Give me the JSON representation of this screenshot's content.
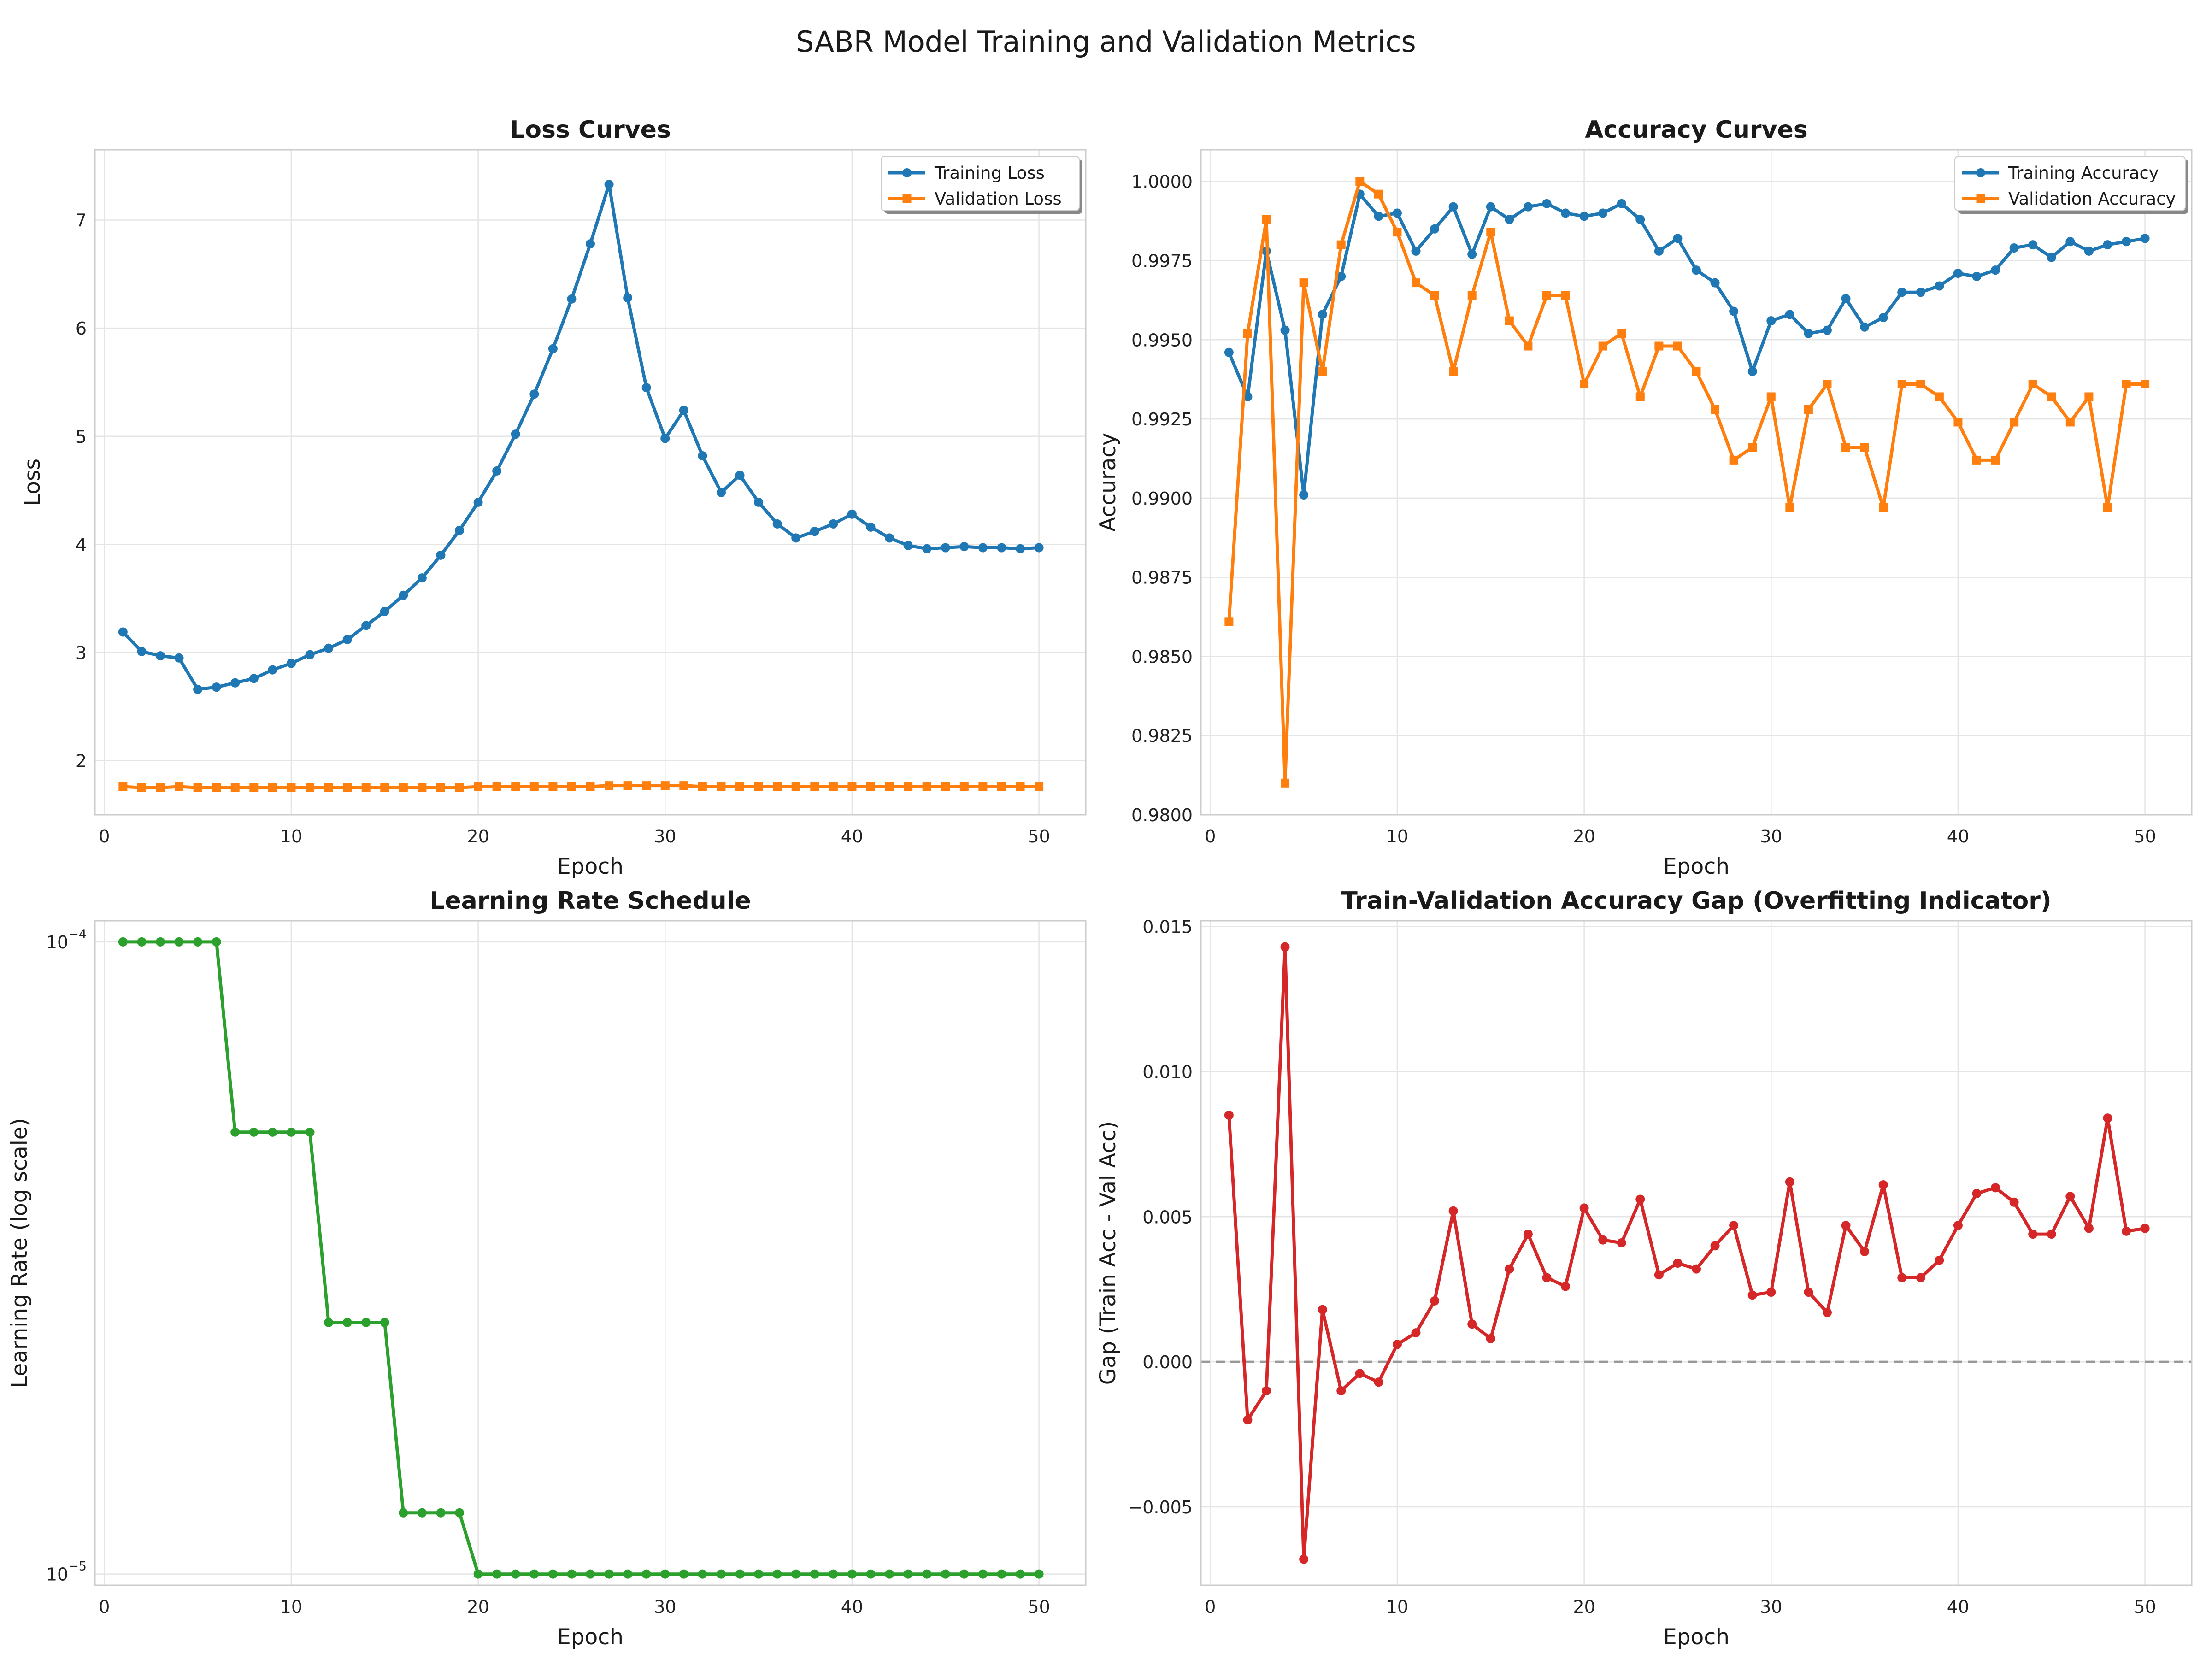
{
  "figure": {
    "title": "SABR Model Training and Validation Metrics"
  },
  "colors": {
    "blue": "#1f77b4",
    "orange": "#ff7f0e",
    "green": "#2ca02c",
    "red": "#d62728",
    "grid": "#e5e5e5",
    "frame": "#cccccc",
    "zero_line": "#999999"
  },
  "chart_data": [
    {
      "type": "line",
      "title": "Loss Curves",
      "xlabel": "Epoch",
      "ylabel": "Loss",
      "xlim": [
        -0.5,
        52.5
      ],
      "ylim": [
        1.5,
        7.65
      ],
      "xticks": [
        0,
        10,
        20,
        30,
        40,
        50
      ],
      "yticks": [
        2,
        3,
        4,
        5,
        6,
        7
      ],
      "ytick_labels": [
        "2",
        "3",
        "4",
        "5",
        "6",
        "7"
      ],
      "grid": true,
      "legend_position": "top-right",
      "x": [
        1,
        2,
        3,
        4,
        5,
        6,
        7,
        8,
        9,
        10,
        11,
        12,
        13,
        14,
        15,
        16,
        17,
        18,
        19,
        20,
        21,
        22,
        23,
        24,
        25,
        26,
        27,
        28,
        29,
        30,
        31,
        32,
        33,
        34,
        35,
        36,
        37,
        38,
        39,
        40,
        41,
        42,
        43,
        44,
        45,
        46,
        47,
        48,
        49,
        50
      ],
      "series": [
        {
          "name": "Training Loss",
          "color": "#1f77b4",
          "marker": "circle",
          "values": [
            3.19,
            3.01,
            2.97,
            2.95,
            2.66,
            2.68,
            2.72,
            2.76,
            2.84,
            2.9,
            2.98,
            3.04,
            3.12,
            3.25,
            3.38,
            3.53,
            3.69,
            3.9,
            4.13,
            4.39,
            4.68,
            5.02,
            5.39,
            5.81,
            6.27,
            6.78,
            7.33,
            6.28,
            5.45,
            4.98,
            5.24,
            4.82,
            4.48,
            4.64,
            4.39,
            4.19,
            4.06,
            4.12,
            4.19,
            4.28,
            4.16,
            4.06,
            3.99,
            3.96,
            3.97,
            3.98,
            3.97,
            3.97,
            3.96,
            3.97
          ]
        },
        {
          "name": "Validation Loss",
          "color": "#ff7f0e",
          "marker": "square",
          "values": [
            1.76,
            1.75,
            1.75,
            1.76,
            1.75,
            1.75,
            1.75,
            1.75,
            1.75,
            1.75,
            1.75,
            1.75,
            1.75,
            1.75,
            1.75,
            1.75,
            1.75,
            1.75,
            1.75,
            1.76,
            1.76,
            1.76,
            1.76,
            1.76,
            1.76,
            1.76,
            1.77,
            1.77,
            1.77,
            1.77,
            1.77,
            1.76,
            1.76,
            1.76,
            1.76,
            1.76,
            1.76,
            1.76,
            1.76,
            1.76,
            1.76,
            1.76,
            1.76,
            1.76,
            1.76,
            1.76,
            1.76,
            1.76,
            1.76,
            1.76
          ]
        }
      ]
    },
    {
      "type": "line",
      "title": "Accuracy Curves",
      "xlabel": "Epoch",
      "ylabel": "Accuracy",
      "xlim": [
        -0.5,
        52.5
      ],
      "ylim": [
        0.98,
        1.001
      ],
      "xticks": [
        0,
        10,
        20,
        30,
        40,
        50
      ],
      "yticks": [
        0.98,
        0.9825,
        0.985,
        0.9875,
        0.99,
        0.9925,
        0.995,
        0.9975,
        1.0
      ],
      "ytick_labels": [
        "0.9800",
        "0.9825",
        "0.9850",
        "0.9875",
        "0.9900",
        "0.9925",
        "0.9950",
        "0.9975",
        "1.0000"
      ],
      "grid": true,
      "legend_position": "top-right",
      "x": [
        1,
        2,
        3,
        4,
        5,
        6,
        7,
        8,
        9,
        10,
        11,
        12,
        13,
        14,
        15,
        16,
        17,
        18,
        19,
        20,
        21,
        22,
        23,
        24,
        25,
        26,
        27,
        28,
        29,
        30,
        31,
        32,
        33,
        34,
        35,
        36,
        37,
        38,
        39,
        40,
        41,
        42,
        43,
        44,
        45,
        46,
        47,
        48,
        49,
        50
      ],
      "series": [
        {
          "name": "Training Accuracy",
          "color": "#1f77b4",
          "marker": "circle",
          "values": [
            0.9946,
            0.9932,
            0.9978,
            0.9953,
            0.9901,
            0.9958,
            0.997,
            0.9996,
            0.9989,
            0.999,
            0.9978,
            0.9985,
            0.9992,
            0.9977,
            0.9992,
            0.9988,
            0.9992,
            0.9993,
            0.999,
            0.9989,
            0.999,
            0.9993,
            0.9988,
            0.9978,
            0.9982,
            0.9972,
            0.9968,
            0.9959,
            0.994,
            0.9956,
            0.9958,
            0.9952,
            0.9953,
            0.9963,
            0.9954,
            0.9957,
            0.9965,
            0.9965,
            0.9967,
            0.9971,
            0.997,
            0.9972,
            0.9979,
            0.998,
            0.9976,
            0.9981,
            0.9978,
            0.998,
            0.9981,
            0.9982
          ]
        },
        {
          "name": "Validation Accuracy",
          "color": "#ff7f0e",
          "marker": "square",
          "values": [
            0.9861,
            0.9952,
            0.9988,
            0.981,
            0.9968,
            0.994,
            0.998,
            1.0,
            0.9996,
            0.9984,
            0.9968,
            0.9964,
            0.994,
            0.9964,
            0.9984,
            0.9956,
            0.9948,
            0.9964,
            0.9964,
            0.9936,
            0.9948,
            0.9952,
            0.9932,
            0.9948,
            0.9948,
            0.994,
            0.9928,
            0.9912,
            0.9916,
            0.9932,
            0.9897,
            0.9928,
            0.9936,
            0.9916,
            0.9916,
            0.9897,
            0.9936,
            0.9936,
            0.9932,
            0.9924,
            0.9912,
            0.9912,
            0.9924,
            0.9936,
            0.9932,
            0.9924,
            0.9932,
            0.9897,
            0.9936,
            0.9936
          ]
        }
      ]
    },
    {
      "type": "line",
      "title": "Learning Rate Schedule",
      "xlabel": "Epoch",
      "ylabel": "Learning Rate (log scale)",
      "yscale": "log",
      "xlim": [
        -0.5,
        52.5
      ],
      "ylim": [
        9.6e-06,
        0.000108
      ],
      "xticks": [
        0,
        10,
        20,
        30,
        40,
        50
      ],
      "yticks": [
        1e-05,
        0.0001
      ],
      "ytick_labels": [
        "10⁻⁵",
        "10⁻⁴"
      ],
      "grid": true,
      "legend_position": "none",
      "x": [
        1,
        2,
        3,
        4,
        5,
        6,
        7,
        8,
        9,
        10,
        11,
        12,
        13,
        14,
        15,
        16,
        17,
        18,
        19,
        20,
        21,
        22,
        23,
        24,
        25,
        26,
        27,
        28,
        29,
        30,
        31,
        32,
        33,
        34,
        35,
        36,
        37,
        38,
        39,
        40,
        41,
        42,
        43,
        44,
        45,
        46,
        47,
        48,
        49,
        50
      ],
      "series": [
        {
          "color": "#2ca02c",
          "marker": "circle",
          "values": [
            0.0001,
            0.0001,
            0.0001,
            0.0001,
            0.0001,
            0.0001,
            5e-05,
            5e-05,
            5e-05,
            5e-05,
            5e-05,
            2.5e-05,
            2.5e-05,
            2.5e-05,
            2.5e-05,
            1.25e-05,
            1.25e-05,
            1.25e-05,
            1.25e-05,
            1e-05,
            1e-05,
            1e-05,
            1e-05,
            1e-05,
            1e-05,
            1e-05,
            1e-05,
            1e-05,
            1e-05,
            1e-05,
            1e-05,
            1e-05,
            1e-05,
            1e-05,
            1e-05,
            1e-05,
            1e-05,
            1e-05,
            1e-05,
            1e-05,
            1e-05,
            1e-05,
            1e-05,
            1e-05,
            1e-05,
            1e-05,
            1e-05,
            1e-05,
            1e-05,
            1e-05
          ]
        }
      ]
    },
    {
      "type": "line",
      "title": "Train-Validation Accuracy Gap (Overfitting Indicator)",
      "xlabel": "Epoch",
      "ylabel": "Gap (Train Acc - Val Acc)",
      "xlim": [
        -0.5,
        52.5
      ],
      "ylim": [
        -0.0077,
        0.0152
      ],
      "xticks": [
        0,
        10,
        20,
        30,
        40,
        50
      ],
      "yticks": [
        -0.005,
        0.0,
        0.005,
        0.01,
        0.015
      ],
      "ytick_labels": [
        "−0.005",
        "0.000",
        "0.005",
        "0.010",
        "0.015"
      ],
      "grid": true,
      "reference_line": 0,
      "legend_position": "none",
      "x": [
        1,
        2,
        3,
        4,
        5,
        6,
        7,
        8,
        9,
        10,
        11,
        12,
        13,
        14,
        15,
        16,
        17,
        18,
        19,
        20,
        21,
        22,
        23,
        24,
        25,
        26,
        27,
        28,
        29,
        30,
        31,
        32,
        33,
        34,
        35,
        36,
        37,
        38,
        39,
        40,
        41,
        42,
        43,
        44,
        45,
        46,
        47,
        48,
        49,
        50
      ],
      "series": [
        {
          "color": "#d62728",
          "marker": "circle",
          "values": [
            0.0085,
            -0.002,
            -0.001,
            0.0143,
            -0.0068,
            0.0018,
            -0.001,
            -0.0004,
            -0.0007,
            0.0006,
            0.001,
            0.0021,
            0.0052,
            0.0013,
            0.0008,
            0.0032,
            0.0044,
            0.0029,
            0.0026,
            0.0053,
            0.0042,
            0.0041,
            0.0056,
            0.003,
            0.0034,
            0.0032,
            0.004,
            0.0047,
            0.0023,
            0.0024,
            0.0062,
            0.0024,
            0.0017,
            0.0047,
            0.0038,
            0.0061,
            0.0029,
            0.0029,
            0.0035,
            0.0047,
            0.0058,
            0.006,
            0.0055,
            0.0044,
            0.0044,
            0.0057,
            0.0046,
            0.0084,
            0.0045,
            0.0046
          ]
        }
      ]
    }
  ]
}
